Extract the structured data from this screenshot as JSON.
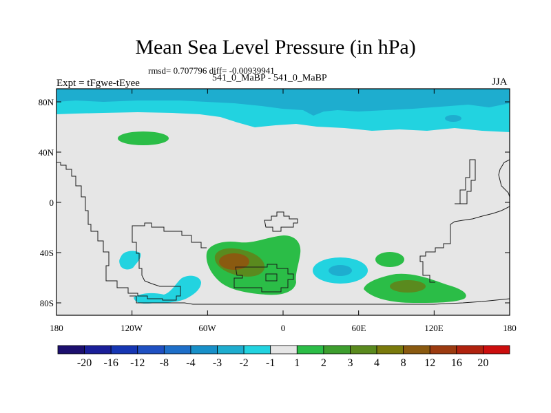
{
  "title": "Mean Sea Level Pressure (in hPa)",
  "stats_line": "rmsd= 0.707796 diff= -0.00939941",
  "subtitle": "541_0_MaBP - 541_0_MaBP",
  "experiment": "Expt = tFgwe-tEyee",
  "season": "JJA",
  "lat_ticks": [
    "80N",
    "40N",
    "0",
    "40S",
    "80S"
  ],
  "lon_ticks": [
    "180",
    "120W",
    "60W",
    "0",
    "60E",
    "120E",
    "180"
  ],
  "colorbar": {
    "labels": [
      "-20",
      "-16",
      "-12",
      "-8",
      "-4",
      "-3",
      "-2",
      "-1",
      "1",
      "2",
      "3",
      "4",
      "8",
      "12",
      "16",
      "20"
    ],
    "colors": [
      "#1c0f6e",
      "#1a1f99",
      "#1636b3",
      "#1f50c2",
      "#1e6fc9",
      "#1890c9",
      "#1eadcf",
      "#22d3e0",
      "#e6e6e6",
      "#2bbd47",
      "#3d9e2e",
      "#5a8a1e",
      "#7a7a0c",
      "#8a5a10",
      "#9c3b10",
      "#b0220e",
      "#cc0e0e"
    ]
  },
  "colors": {
    "background": "#e6e6e6",
    "neg_light": "#22d3e0",
    "neg_mid": "#1eadcf",
    "neg_dark": "#1890c9",
    "pos_light": "#2bbd47",
    "pos_mid": "#5a8a1e",
    "pos_dark": "#8a5a10"
  }
}
